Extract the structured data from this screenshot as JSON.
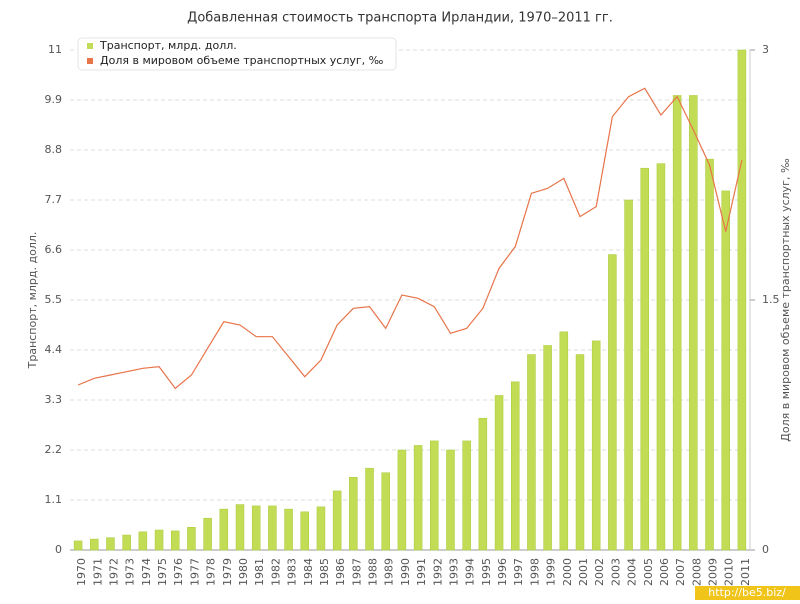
{
  "chart_data": {
    "type": "bar-line",
    "title": "Добавленная стоимость транспорта Ирландии, 1970–2011 гг.",
    "y_label": "Транспорт, млрд. долл.",
    "y2_label": "Доля в мировом объеме транспортных услуг, ‰",
    "watermark": "http://be5.biz/",
    "categories": [
      "1970",
      "1971",
      "1972",
      "1973",
      "1974",
      "1975",
      "1976",
      "1977",
      "1978",
      "1979",
      "1980",
      "1981",
      "1982",
      "1983",
      "1984",
      "1985",
      "1986",
      "1987",
      "1988",
      "1989",
      "1990",
      "1991",
      "1992",
      "1993",
      "1994",
      "1995",
      "1996",
      "1997",
      "1998",
      "1999",
      "2000",
      "2001",
      "2002",
      "2003",
      "2004",
      "2005",
      "2006",
      "2007",
      "2008",
      "2009",
      "2010",
      "2011"
    ],
    "series": [
      {
        "name": "Транспорт, млрд. долл.",
        "type": "bar",
        "color": "#c2dd55",
        "values": [
          0.2,
          0.24,
          0.27,
          0.33,
          0.4,
          0.44,
          0.42,
          0.5,
          0.7,
          0.9,
          1.0,
          0.97,
          0.97,
          0.9,
          0.84,
          0.95,
          1.3,
          1.6,
          1.8,
          1.7,
          2.2,
          2.3,
          2.4,
          2.2,
          2.4,
          2.9,
          3.4,
          3.7,
          4.3,
          4.5,
          4.8,
          4.3,
          4.6,
          6.5,
          7.7,
          8.4,
          8.5,
          10.0,
          10.0,
          8.6,
          7.9,
          11.0
        ]
      },
      {
        "name": "Доля в мировом объеме транспортных услуг, ‰",
        "type": "line",
        "color": "#e8744a",
        "axis": "y2",
        "values": [
          0.99,
          1.03,
          1.05,
          1.07,
          1.09,
          1.1,
          0.97,
          1.05,
          1.21,
          1.37,
          1.35,
          1.28,
          1.28,
          1.16,
          1.04,
          1.14,
          1.35,
          1.45,
          1.46,
          1.33,
          1.53,
          1.51,
          1.46,
          1.3,
          1.33,
          1.45,
          1.69,
          1.82,
          2.14,
          2.17,
          2.23,
          2.0,
          2.06,
          2.6,
          2.72,
          2.77,
          2.61,
          2.72,
          2.52,
          2.31,
          1.91,
          2.34
        ]
      }
    ],
    "ylim": [
      0,
      11
    ],
    "yticks": [
      0,
      1.1,
      2.2,
      3.3,
      4.4,
      5.5,
      6.6,
      7.7,
      8.8,
      9.9,
      11
    ],
    "y2lim": [
      0,
      3
    ],
    "y2ticks": [
      0,
      1.5,
      3
    ],
    "grid": true,
    "legend": "top-left"
  }
}
